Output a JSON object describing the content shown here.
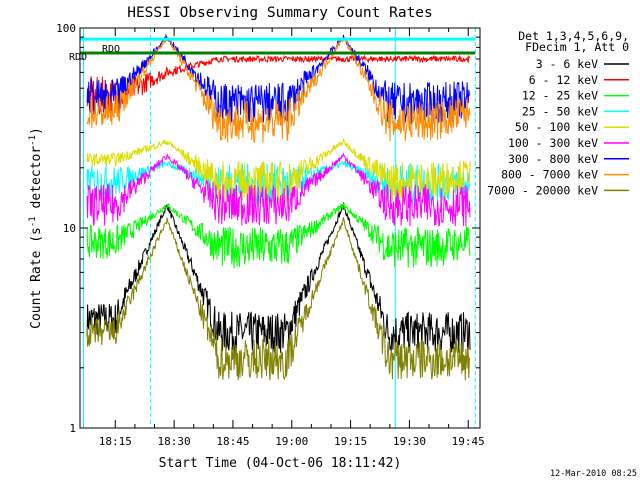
{
  "chart_data": {
    "type": "line",
    "title": "HESSI Observing Summary Count Rates",
    "xlabel": "Start Time (04-Oct-06 18:11:42)",
    "ylabel_main": "Count Rate (s",
    "ylabel_sup1": "-1",
    "ylabel_mid": " detector",
    "ylabel_sup2": "-1",
    "ylabel_end": ")",
    "ylog": true,
    "ylim": [
      1,
      100
    ],
    "xlim_minutes": [
      18.1,
      19.8
    ],
    "x_ticks": [
      "18:15",
      "18:30",
      "18:45",
      "19:00",
      "19:15",
      "19:30",
      "19:45"
    ],
    "y_ticks": [
      "1",
      "10",
      "100"
    ],
    "legend_header": [
      "Det 1,3,4,5,6,9,",
      "FDecim 1, Att 0"
    ],
    "legend_position": "right",
    "footer_date": "12-Mar-2010 08:25",
    "annotations": [
      {
        "text": "RDO",
        "color": "#006400"
      },
      {
        "text": "RDO",
        "color": "#006400"
      }
    ],
    "night_intervals_hours": [
      [
        18.115,
        18.4
      ],
      [
        19.44,
        19.78
      ]
    ],
    "ref_levels": [
      {
        "y": 75,
        "color": "#008000",
        "width": 3
      },
      {
        "y": 88,
        "color": "#00ffff",
        "width": 3
      }
    ],
    "series": [
      {
        "name": "3 - 6 keV",
        "color": "#000000",
        "profile": [
          3.5,
          3.5,
          13,
          3.0,
          3.0,
          13,
          3.0,
          3.0,
          3.0
        ]
      },
      {
        "name": "6 - 12 keV",
        "color": "#ff0000",
        "profile": [
          45,
          45,
          60,
          70,
          70,
          70,
          70,
          70,
          70
        ]
      },
      {
        "name": "12 - 25 keV",
        "color": "#00ff00",
        "profile": [
          8.5,
          8.5,
          13,
          8.0,
          8.0,
          13,
          8.0,
          8.0,
          8.5
        ]
      },
      {
        "name": "25 - 50 keV",
        "color": "#00ffff",
        "profile": [
          17,
          17,
          21,
          16.5,
          16.5,
          21,
          16.5,
          16.5,
          17
        ]
      },
      {
        "name": "50 - 100 keV",
        "color": "#dddd00",
        "profile": [
          22,
          22,
          27,
          17,
          17,
          27,
          17,
          17,
          19
        ]
      },
      {
        "name": "100 - 300 keV",
        "color": "#ff00ff",
        "profile": [
          13,
          13,
          23,
          13,
          13,
          23,
          13,
          13,
          13
        ]
      },
      {
        "name": "300 - 800 keV",
        "color": "#0000ff",
        "profile": [
          45,
          45,
          90,
          42,
          42,
          90,
          42,
          42,
          44
        ]
      },
      {
        "name": "800 - 7000 keV",
        "color": "#ff8c00",
        "profile": [
          38,
          38,
          90,
          34,
          34,
          90,
          34,
          34,
          38
        ]
      },
      {
        "name": "7000 - 20000 keV",
        "color": "#808000",
        "profile": [
          3.0,
          3.0,
          11,
          2.2,
          2.2,
          11,
          2.2,
          2.2,
          2.2
        ]
      }
    ],
    "profile_hours": [
      18.13,
      18.25,
      18.47,
      18.69,
      18.98,
      19.22,
      19.41,
      19.6,
      19.76
    ]
  }
}
